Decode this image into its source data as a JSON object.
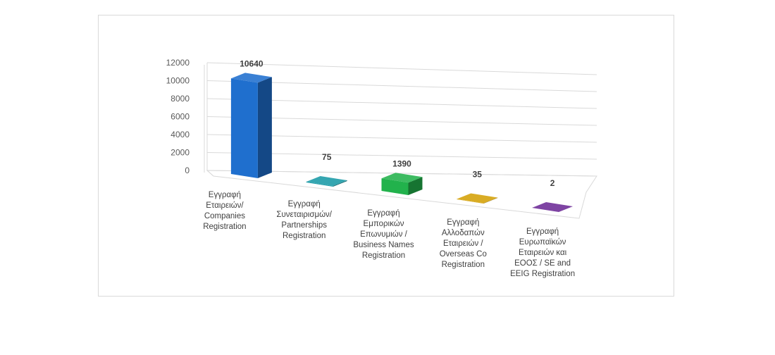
{
  "chart_data": {
    "type": "bar",
    "style": "3d-column",
    "categories": [
      [
        "Εγγραφή",
        "Εταιρειών/",
        "Companies",
        "Registration"
      ],
      [
        "Εγγραφή",
        "Συνεταιρισμών/",
        "Partnerships",
        "Registration"
      ],
      [
        "Εγγραφή",
        "Εμπορικών",
        "Επωνυμιών /",
        "Business Names",
        "Registration"
      ],
      [
        "Εγγραφή",
        "Αλλοδαπών",
        "Εταιρειών /",
        "Overseas Co",
        "Registration"
      ],
      [
        "Εγγραφή",
        "Ευρωπαϊκών",
        "Εταιρειών και",
        "ΕΟΟΣ / SE and",
        "EEIG Registration"
      ]
    ],
    "values": [
      10640,
      75,
      1390,
      35,
      2
    ],
    "data_labels": [
      "10640",
      "75",
      "1390",
      "35",
      "2"
    ],
    "colors": [
      "#1f6fce",
      "#1a9aa6",
      "#22b24c",
      "#d4a106",
      "#6c2a96"
    ],
    "y_ticks": [
      0,
      2000,
      4000,
      6000,
      8000,
      10000,
      12000
    ],
    "ylim": [
      0,
      12000
    ],
    "grid": true,
    "legend": "none",
    "title": "",
    "xlabel": "",
    "ylabel": ""
  }
}
